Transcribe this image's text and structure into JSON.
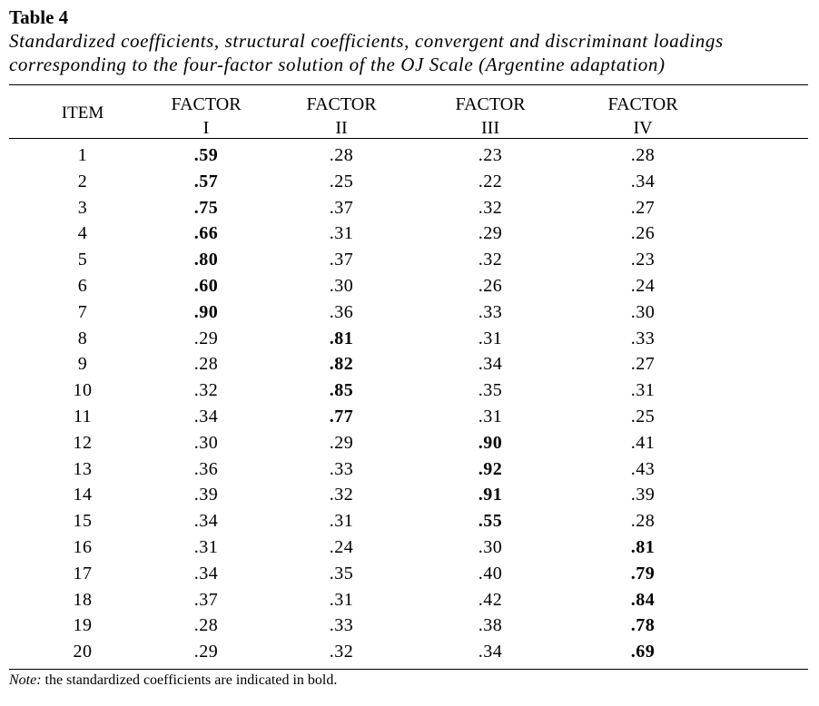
{
  "table": {
    "label": "Table 4",
    "caption_line1": "Standardized coefficients, structural coefficients, convergent and discriminant loadings",
    "caption_line2": "corresponding to the four-factor solution of the OJ Scale (Argentine adaptation)",
    "headers": {
      "item": "ITEM",
      "factor_word": "FACTOR",
      "f1": "I",
      "f2": "II",
      "f3": "III",
      "f4": "IV"
    },
    "rows": [
      {
        "item": "1",
        "f1": ".59",
        "f2": ".28",
        "f3": ".23",
        "f4": ".28",
        "bold": "f1"
      },
      {
        "item": "2",
        "f1": ".57",
        "f2": ".25",
        "f3": ".22",
        "f4": ".34",
        "bold": "f1"
      },
      {
        "item": "3",
        "f1": ".75",
        "f2": ".37",
        "f3": ".32",
        "f4": ".27",
        "bold": "f1"
      },
      {
        "item": "4",
        "f1": ".66",
        "f2": ".31",
        "f3": ".29",
        "f4": ".26",
        "bold": "f1"
      },
      {
        "item": "5",
        "f1": ".80",
        "f2": ".37",
        "f3": ".32",
        "f4": ".23",
        "bold": "f1"
      },
      {
        "item": "6",
        "f1": ".60",
        "f2": ".30",
        "f3": ".26",
        "f4": ".24",
        "bold": "f1"
      },
      {
        "item": "7",
        "f1": ".90",
        "f2": ".36",
        "f3": ".33",
        "f4": ".30",
        "bold": "f1"
      },
      {
        "item": "8",
        "f1": ".29",
        "f2": ".81",
        "f3": ".31",
        "f4": ".33",
        "bold": "f2"
      },
      {
        "item": "9",
        "f1": ".28",
        "f2": ".82",
        "f3": ".34",
        "f4": ".27",
        "bold": "f2"
      },
      {
        "item": "10",
        "f1": ".32",
        "f2": ".85",
        "f3": ".35",
        "f4": ".31",
        "bold": "f2"
      },
      {
        "item": "11",
        "f1": ".34",
        "f2": ".77",
        "f3": ".31",
        "f4": ".25",
        "bold": "f2"
      },
      {
        "item": "12",
        "f1": ".30",
        "f2": ".29",
        "f3": ".90",
        "f4": ".41",
        "bold": "f3"
      },
      {
        "item": "13",
        "f1": ".36",
        "f2": ".33",
        "f3": ".92",
        "f4": ".43",
        "bold": "f3"
      },
      {
        "item": "14",
        "f1": ".39",
        "f2": ".32",
        "f3": ".91",
        "f4": ".39",
        "bold": "f3"
      },
      {
        "item": "15",
        "f1": ".34",
        "f2": ".31",
        "f3": ".55",
        "f4": ".28",
        "bold": "f3"
      },
      {
        "item": "16",
        "f1": ".31",
        "f2": ".24",
        "f3": ".30",
        "f4": ".81",
        "bold": "f4"
      },
      {
        "item": "17",
        "f1": ".34",
        "f2": ".35",
        "f3": ".40",
        "f4": ".79",
        "bold": "f4"
      },
      {
        "item": "18",
        "f1": ".37",
        "f2": ".31",
        "f3": ".42",
        "f4": ".84",
        "bold": "f4"
      },
      {
        "item": "19",
        "f1": ".28",
        "f2": ".33",
        "f3": ".38",
        "f4": ".78",
        "bold": "f4"
      },
      {
        "item": "20",
        "f1": ".29",
        "f2": ".32",
        "f3": ".34",
        "f4": ".69",
        "bold": "f4"
      }
    ],
    "note_label": "Note:",
    "note_text": " the standardized coefficients are indicated in bold."
  }
}
